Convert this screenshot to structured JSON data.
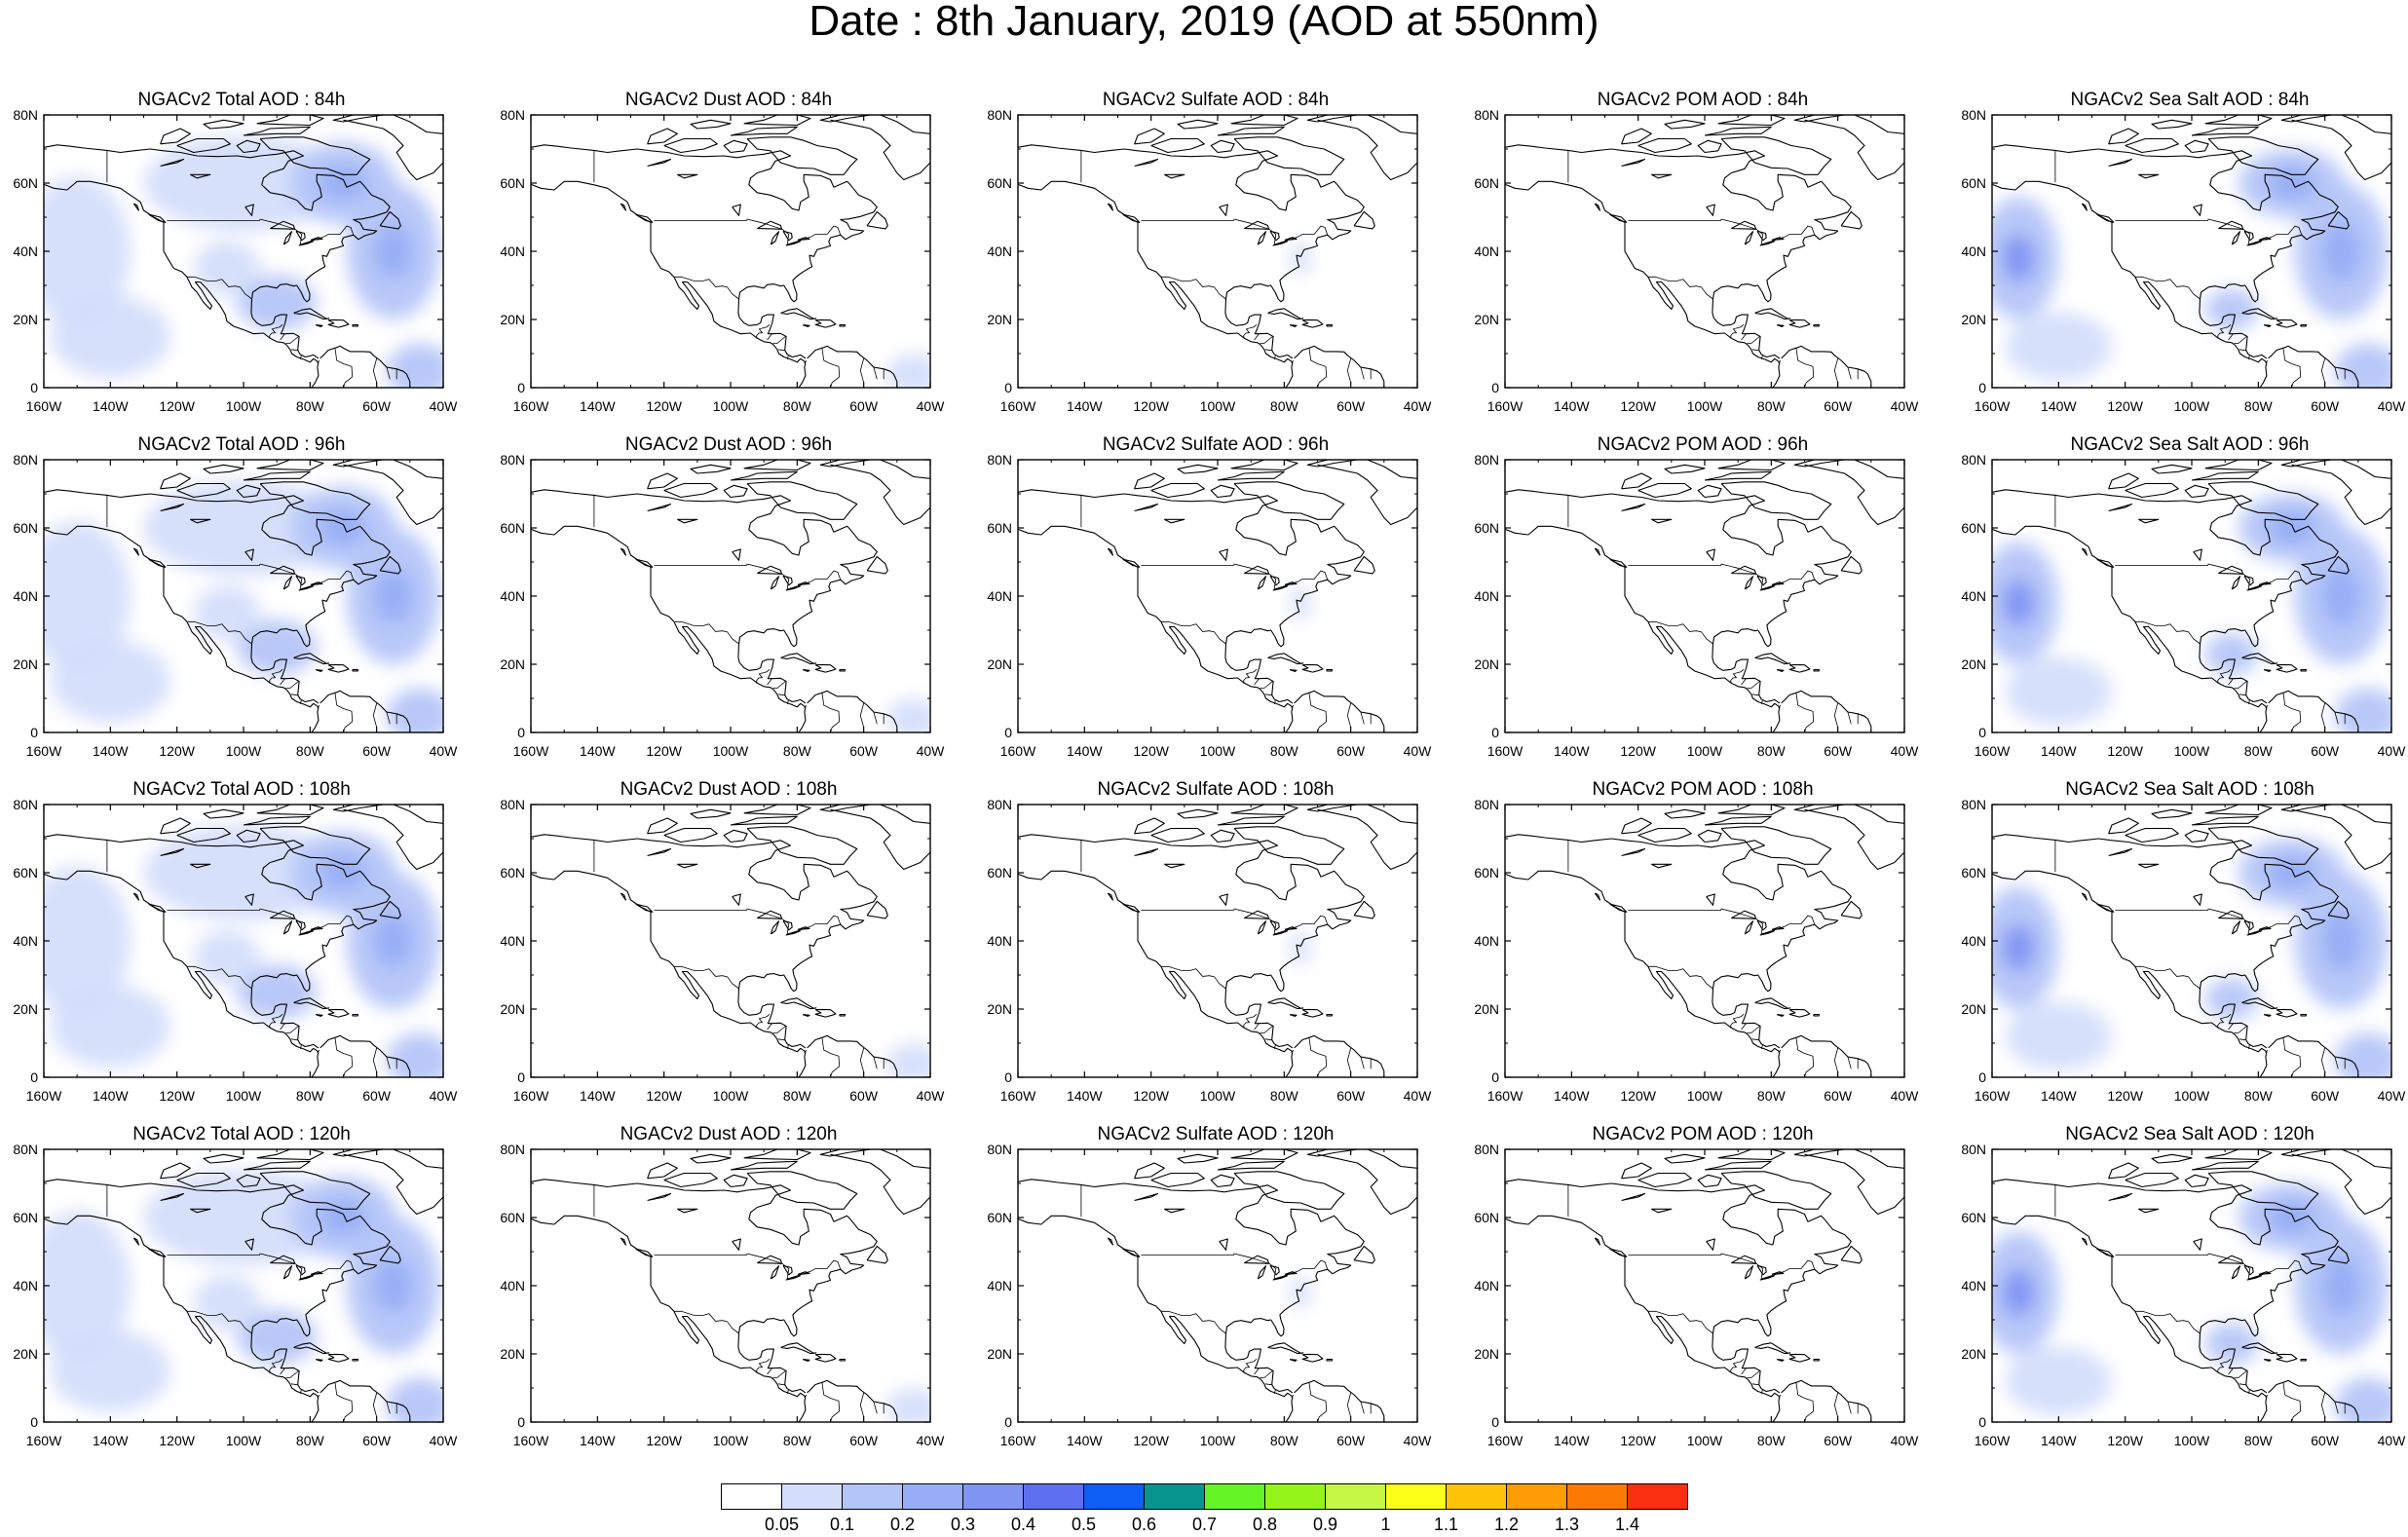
{
  "title": "Date : 8th January, 2019 (AOD at 550nm)",
  "map_extent": {
    "lon": [
      -160,
      -40
    ],
    "lat": [
      0,
      80
    ]
  },
  "lat_ticks": [
    "0",
    "20N",
    "40N",
    "60N",
    "80N"
  ],
  "lon_ticks": [
    "160W",
    "140W",
    "120W",
    "100W",
    "80W",
    "60W",
    "40W"
  ],
  "panels": [
    {
      "title": "NGACv2 Total AOD : 84h",
      "field": "total",
      "lead": 84
    },
    {
      "title": "NGACv2 Dust AOD : 84h",
      "field": "dust",
      "lead": 84
    },
    {
      "title": "NGACv2 Sulfate AOD : 84h",
      "field": "sulfate",
      "lead": 84
    },
    {
      "title": "NGACv2 POM AOD : 84h",
      "field": "pom",
      "lead": 84
    },
    {
      "title": "NGACv2 Sea Salt AOD : 84h",
      "field": "seasalt",
      "lead": 84
    },
    {
      "title": "NGACv2 Total AOD : 96h",
      "field": "total",
      "lead": 96
    },
    {
      "title": "NGACv2 Dust AOD : 96h",
      "field": "dust",
      "lead": 96
    },
    {
      "title": "NGACv2 Sulfate AOD : 96h",
      "field": "sulfate",
      "lead": 96
    },
    {
      "title": "NGACv2 POM AOD : 96h",
      "field": "pom",
      "lead": 96
    },
    {
      "title": "NGACv2 Sea Salt AOD : 96h",
      "field": "seasalt",
      "lead": 96
    },
    {
      "title": "NGACv2 Total AOD : 108h",
      "field": "total",
      "lead": 108
    },
    {
      "title": "NGACv2 Dust AOD : 108h",
      "field": "dust",
      "lead": 108
    },
    {
      "title": "NGACv2 Sulfate AOD : 108h",
      "field": "sulfate",
      "lead": 108
    },
    {
      "title": "NGACv2 POM AOD : 108h",
      "field": "pom",
      "lead": 108
    },
    {
      "title": "NGACv2 Sea Salt AOD : 108h",
      "field": "seasalt",
      "lead": 108
    },
    {
      "title": "NGACv2 Total AOD : 120h",
      "field": "total",
      "lead": 120
    },
    {
      "title": "NGACv2 Dust AOD : 120h",
      "field": "dust",
      "lead": 120
    },
    {
      "title": "NGACv2 Sulfate AOD : 120h",
      "field": "sulfate",
      "lead": 120
    },
    {
      "title": "NGACv2 POM AOD : 120h",
      "field": "pom",
      "lead": 120
    },
    {
      "title": "NGACv2 Sea Salt  AOD : 120h",
      "field": "seasalt",
      "lead": 120
    }
  ],
  "colorbar": {
    "labels": [
      "0.05",
      "0.1",
      "0.2",
      "0.3",
      "0.4",
      "0.5",
      "0.6",
      "0.7",
      "0.8",
      "0.9",
      "1",
      "1.1",
      "1.2",
      "1.3",
      "1.4"
    ],
    "colors": [
      "#ffffff",
      "#d4defb",
      "#b4c5f8",
      "#97aef7",
      "#7f94f3",
      "#5e6ff0",
      "#0f5ef5",
      "#08958f",
      "#66f524",
      "#95f51a",
      "#c6f744",
      "#fefe1b",
      "#fec208",
      "#fd9c05",
      "#fc7a03",
      "#fa2f11"
    ]
  }
}
